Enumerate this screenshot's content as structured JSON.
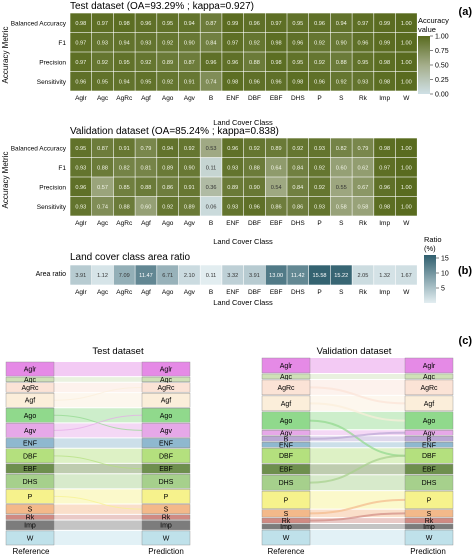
{
  "panels": {
    "a": "(a)",
    "b": "(b)",
    "c": "(c)"
  },
  "heatmaps": [
    {
      "title": "Test dataset (OA=93.29% ; kappa=0.927)",
      "ylabel": "Accuracy Metric",
      "xlabel": "Land Cover Class",
      "classes": [
        "Aglr",
        "Agc",
        "AgRc",
        "Agf",
        "Ago",
        "Agv",
        "B",
        "ENF",
        "DBF",
        "EBF",
        "DHS",
        "P",
        "S",
        "Rk",
        "Imp",
        "W"
      ],
      "metrics": [
        "Balanced Accuracy",
        "F1",
        "Precision",
        "Sensitivity"
      ],
      "values": [
        [
          "0.98",
          "0.97",
          "0.98",
          "0.96",
          "0.95",
          "0.94",
          "0.87",
          "0.99",
          "0.96",
          "0.97",
          "0.95",
          "0.96",
          "0.94",
          "0.97",
          "0.99",
          "1.00"
        ],
        [
          "0.97",
          "0.93",
          "0.94",
          "0.93",
          "0.92",
          "0.90",
          "0.84",
          "0.97",
          "0.92",
          "0.98",
          "0.96",
          "0.92",
          "0.90",
          "0.96",
          "0.99",
          "1.00"
        ],
        [
          "0.97",
          "0.92",
          "0.95",
          "0.92",
          "0.89",
          "0.87",
          "0.96",
          "0.96",
          "0.88",
          "0.98",
          "0.95",
          "0.92",
          "0.88",
          "0.95",
          "0.98",
          "1.00"
        ],
        [
          "0.96",
          "0.95",
          "0.94",
          "0.95",
          "0.92",
          "0.91",
          "0.74",
          "0.98",
          "0.96",
          "0.96",
          "0.98",
          "0.96",
          "0.92",
          "0.93",
          "0.98",
          "1.00"
        ]
      ]
    },
    {
      "title": "Validation dataset (OA=85.24% ; kappa=0.838)",
      "ylabel": "Accuracy Metric",
      "xlabel": "Land Cover Class",
      "classes": [
        "Aglr",
        "Agc",
        "AgRc",
        "Agf",
        "Ago",
        "Agv",
        "B",
        "ENF",
        "DBF",
        "EBF",
        "DHS",
        "P",
        "S",
        "Rk",
        "Imp",
        "W"
      ],
      "metrics": [
        "Balanced Accuracy",
        "F1",
        "Precision",
        "Sensitivity"
      ],
      "values": [
        [
          "0.95",
          "0.87",
          "0.91",
          "0.79",
          "0.94",
          "0.92",
          "0.53",
          "0.96",
          "0.92",
          "0.89",
          "0.92",
          "0.93",
          "0.82",
          "0.79",
          "0.98",
          "1.00"
        ],
        [
          "0.93",
          "0.88",
          "0.82",
          "0.81",
          "0.89",
          "0.90",
          "0.11",
          "0.93",
          "0.88",
          "0.64",
          "0.84",
          "0.92",
          "0.60",
          "0.62",
          "0.97",
          "1.00"
        ],
        [
          "0.96",
          "0.57",
          "0.85",
          "0.88",
          "0.86",
          "0.91",
          "0.36",
          "0.89",
          "0.90",
          "0.54",
          "0.84",
          "0.92",
          "0.55",
          "0.67",
          "0.96",
          "1.00"
        ],
        [
          "0.93",
          "0.74",
          "0.88",
          "0.60",
          "0.92",
          "0.89",
          "0.06",
          "0.93",
          "0.96",
          "0.86",
          "0.86",
          "0.93",
          "0.58",
          "0.58",
          "0.98",
          "1.00"
        ]
      ]
    }
  ],
  "accuracy_legend": {
    "title": "Accuracy\nvalue",
    "ticks": [
      "1.00",
      "0.75",
      "0.50",
      "0.25",
      "0.00"
    ]
  },
  "ratio": {
    "title": "Land cover class area ratio",
    "row_label": "Area ratio",
    "xlabel": "Land Cover Class",
    "classes": [
      "Aglr",
      "Agc",
      "AgRc",
      "Agf",
      "Ago",
      "Agv",
      "B",
      "ENF",
      "DBF",
      "EBF",
      "DHS",
      "P",
      "S",
      "Rk",
      "Imp",
      "W"
    ],
    "values": [
      "3.91",
      "1.12",
      "7.09",
      "11.47",
      "6.71",
      "2.10",
      "0.11",
      "3.32",
      "3.91",
      "13.00",
      "11.42",
      "15.58",
      "15.22",
      "2.05",
      "1.32",
      "1.67"
    ]
  },
  "ratio_legend": {
    "title": "Ratio\n(%)",
    "ticks": [
      "15",
      "10",
      "5"
    ]
  },
  "sankeys": [
    {
      "title": "Test dataset",
      "left_label": "Reference",
      "right_label": "Prediction",
      "nodes": [
        "Aglr",
        "Agc",
        "AgRc",
        "Agf",
        "Ago",
        "Agv",
        "ENF",
        "DBF",
        "EBF",
        "DHS",
        "P",
        "S",
        "Rk",
        "Imp",
        "W"
      ]
    },
    {
      "title": "Validation dataset",
      "left_label": "Reference",
      "right_label": "Prediction",
      "nodes": [
        "Aglr",
        "Agc",
        "AgRc",
        "Agf",
        "Ago",
        "Agv",
        "B",
        "ENF",
        "DBF",
        "EBF",
        "DHS",
        "P",
        "S",
        "Rk",
        "Imp",
        "W"
      ]
    }
  ],
  "chart_data": [
    {
      "type": "heatmap",
      "title": "Test dataset (OA=93.29% ; kappa=0.927)",
      "xlabel": "Land Cover Class",
      "ylabel": "Accuracy Metric",
      "x": [
        "Aglr",
        "Agc",
        "AgRc",
        "Agf",
        "Ago",
        "Agv",
        "B",
        "ENF",
        "DBF",
        "EBF",
        "DHS",
        "P",
        "S",
        "Rk",
        "Imp",
        "W"
      ],
      "y": [
        "Balanced Accuracy",
        "F1",
        "Precision",
        "Sensitivity"
      ],
      "values": [
        [
          0.98,
          0.97,
          0.98,
          0.96,
          0.95,
          0.94,
          0.87,
          0.99,
          0.96,
          0.97,
          0.95,
          0.96,
          0.94,
          0.97,
          0.99,
          1.0
        ],
        [
          0.97,
          0.93,
          0.94,
          0.93,
          0.92,
          0.9,
          0.84,
          0.97,
          0.92,
          0.98,
          0.96,
          0.92,
          0.9,
          0.96,
          0.99,
          1.0
        ],
        [
          0.97,
          0.92,
          0.95,
          0.92,
          0.89,
          0.87,
          0.96,
          0.96,
          0.88,
          0.98,
          0.95,
          0.92,
          0.88,
          0.95,
          0.98,
          1.0
        ],
        [
          0.96,
          0.95,
          0.94,
          0.95,
          0.92,
          0.91,
          0.74,
          0.98,
          0.96,
          0.96,
          0.98,
          0.96,
          0.92,
          0.93,
          0.98,
          1.0
        ]
      ],
      "colorbar": {
        "title": "Accuracy value",
        "range": [
          0,
          1
        ],
        "ticks": [
          0.0,
          0.25,
          0.5,
          0.75,
          1.0
        ],
        "low_color": "#cfe0e6",
        "high_color": "#596b1f"
      }
    },
    {
      "type": "heatmap",
      "title": "Validation dataset (OA=85.24% ; kappa=0.838)",
      "xlabel": "Land Cover Class",
      "ylabel": "Accuracy Metric",
      "x": [
        "Aglr",
        "Agc",
        "AgRc",
        "Agf",
        "Ago",
        "Agv",
        "B",
        "ENF",
        "DBF",
        "EBF",
        "DHS",
        "P",
        "S",
        "Rk",
        "Imp",
        "W"
      ],
      "y": [
        "Balanced Accuracy",
        "F1",
        "Precision",
        "Sensitivity"
      ],
      "values": [
        [
          0.95,
          0.87,
          0.91,
          0.79,
          0.94,
          0.92,
          0.53,
          0.96,
          0.92,
          0.89,
          0.92,
          0.93,
          0.82,
          0.79,
          0.98,
          1.0
        ],
        [
          0.93,
          0.88,
          0.82,
          0.81,
          0.89,
          0.9,
          0.11,
          0.93,
          0.88,
          0.64,
          0.84,
          0.92,
          0.6,
          0.62,
          0.97,
          1.0
        ],
        [
          0.96,
          0.57,
          0.85,
          0.88,
          0.86,
          0.91,
          0.36,
          0.89,
          0.9,
          0.54,
          0.84,
          0.92,
          0.55,
          0.67,
          0.96,
          1.0
        ],
        [
          0.93,
          0.74,
          0.88,
          0.6,
          0.92,
          0.89,
          0.06,
          0.93,
          0.96,
          0.86,
          0.86,
          0.93,
          0.58,
          0.58,
          0.98,
          1.0
        ]
      ]
    },
    {
      "type": "heatmap",
      "title": "Land cover class area ratio",
      "xlabel": "Land Cover Class",
      "x": [
        "Aglr",
        "Agc",
        "AgRc",
        "Agf",
        "Ago",
        "Agv",
        "B",
        "ENF",
        "DBF",
        "EBF",
        "DHS",
        "P",
        "S",
        "Rk",
        "Imp",
        "W"
      ],
      "y": [
        "Area ratio"
      ],
      "values": [
        [
          3.91,
          1.12,
          7.09,
          11.47,
          6.71,
          2.1,
          0.11,
          3.32,
          3.91,
          13.0,
          11.42,
          15.58,
          15.22,
          2.05,
          1.32,
          1.67
        ]
      ],
      "colorbar": {
        "title": "Ratio (%)",
        "range": [
          0,
          16
        ],
        "ticks": [
          5,
          10,
          15
        ],
        "low_color": "#e3eef1",
        "high_color": "#2f5f6e"
      }
    },
    {
      "type": "sankey",
      "title": "Test dataset",
      "left_axis": "Reference",
      "right_axis": "Prediction",
      "nodes": [
        "Aglr",
        "Agc",
        "AgRc",
        "Agf",
        "Ago",
        "Agv",
        "ENF",
        "DBF",
        "EBF",
        "DHS",
        "P",
        "S",
        "Rk",
        "Imp",
        "W"
      ]
    },
    {
      "type": "sankey",
      "title": "Validation dataset",
      "left_axis": "Reference",
      "right_axis": "Prediction",
      "nodes": [
        "Aglr",
        "Agc",
        "AgRc",
        "Agf",
        "Ago",
        "Agv",
        "B",
        "ENF",
        "DBF",
        "EBF",
        "DHS",
        "P",
        "S",
        "Rk",
        "Imp",
        "W"
      ]
    }
  ],
  "colors": {
    "Aglr": "#e58ae6",
    "Agc": "#cfe0b7",
    "AgRc": "#fbe3d6",
    "Agf": "#fbeeda",
    "Ago": "#90d98c",
    "Agv": "#e6a8e8",
    "B": "#b9a7d4",
    "ENF": "#8fb8cf",
    "DBF": "#b4e07e",
    "EBF": "#6e8f4e",
    "DHS": "#a6d08c",
    "P": "#f6f28c",
    "S": "#f3b98a",
    "Rk": "#d08a83",
    "Imp": "#7c7c7c",
    "W": "#bfe1ea"
  }
}
